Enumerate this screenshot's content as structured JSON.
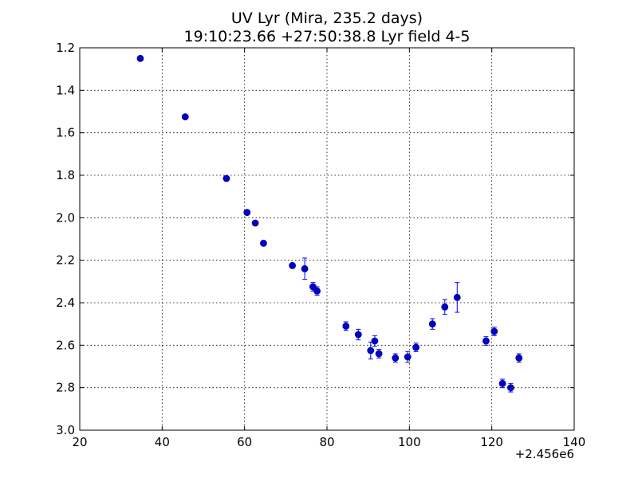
{
  "chart_data": {
    "type": "scatter",
    "title_line1": "UV Lyr (Mira, 235.2 days)",
    "title_line2": "19:10:23.66 +27:50:38.8 Lyr field 4-5",
    "xlabel": "",
    "ylabel": "",
    "x_offset_label": "+2.456e6",
    "xlim": [
      20,
      140
    ],
    "ylim": [
      1.2,
      3.0
    ],
    "y_inverted": true,
    "grid": true,
    "x_ticks": [
      20,
      40,
      60,
      80,
      100,
      120,
      140
    ],
    "x_tick_labels": [
      "20",
      "40",
      "60",
      "80",
      "100",
      "120",
      "140"
    ],
    "y_ticks": [
      1.2,
      1.4,
      1.6,
      1.8,
      2.0,
      2.2,
      2.4,
      2.6,
      2.8,
      3.0
    ],
    "y_tick_labels": [
      "1.2",
      "1.4",
      "1.6",
      "1.8",
      "2.0",
      "2.2",
      "2.4",
      "2.6",
      "2.8",
      "3.0"
    ],
    "marker_color": "#0000cc",
    "errorbar_color": "#0000ff",
    "points": [
      {
        "x": 34.7,
        "y": 1.25,
        "err": 0.0
      },
      {
        "x": 45.6,
        "y": 1.525,
        "err": 0.0
      },
      {
        "x": 55.6,
        "y": 1.815,
        "err": 0.01
      },
      {
        "x": 60.6,
        "y": 1.975,
        "err": 0.01
      },
      {
        "x": 62.6,
        "y": 2.025,
        "err": 0.01
      },
      {
        "x": 64.6,
        "y": 2.12,
        "err": 0.01
      },
      {
        "x": 71.6,
        "y": 2.225,
        "err": 0.01
      },
      {
        "x": 74.6,
        "y": 2.24,
        "err": 0.05
      },
      {
        "x": 76.6,
        "y": 2.325,
        "err": 0.02
      },
      {
        "x": 77.6,
        "y": 2.345,
        "err": 0.02
      },
      {
        "x": 84.6,
        "y": 2.51,
        "err": 0.02
      },
      {
        "x": 87.6,
        "y": 2.55,
        "err": 0.025
      },
      {
        "x": 90.6,
        "y": 2.625,
        "err": 0.04
      },
      {
        "x": 91.6,
        "y": 2.58,
        "err": 0.025
      },
      {
        "x": 92.6,
        "y": 2.64,
        "err": 0.02
      },
      {
        "x": 96.6,
        "y": 2.66,
        "err": 0.02
      },
      {
        "x": 99.6,
        "y": 2.655,
        "err": 0.025
      },
      {
        "x": 101.6,
        "y": 2.61,
        "err": 0.02
      },
      {
        "x": 105.6,
        "y": 2.5,
        "err": 0.025
      },
      {
        "x": 108.6,
        "y": 2.42,
        "err": 0.035
      },
      {
        "x": 111.6,
        "y": 2.375,
        "err": 0.07
      },
      {
        "x": 118.6,
        "y": 2.58,
        "err": 0.02
      },
      {
        "x": 120.6,
        "y": 2.535,
        "err": 0.02
      },
      {
        "x": 122.6,
        "y": 2.78,
        "err": 0.02
      },
      {
        "x": 124.6,
        "y": 2.8,
        "err": 0.02
      },
      {
        "x": 126.6,
        "y": 2.66,
        "err": 0.02
      }
    ]
  }
}
